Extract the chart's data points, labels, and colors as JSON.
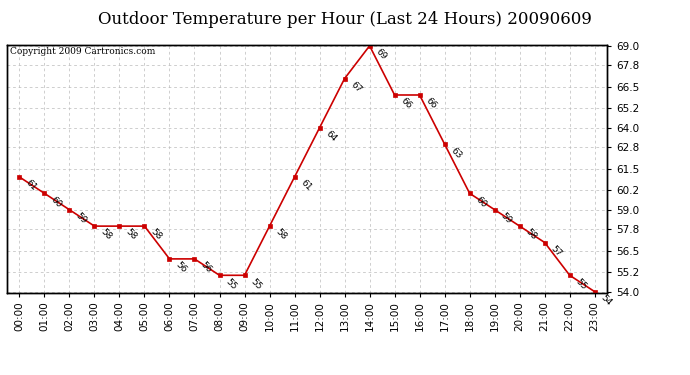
{
  "title": "Outdoor Temperature per Hour (Last 24 Hours) 20090609",
  "copyright": "Copyright 2009 Cartronics.com",
  "hours": [
    "00:00",
    "01:00",
    "02:00",
    "03:00",
    "04:00",
    "05:00",
    "06:00",
    "07:00",
    "08:00",
    "09:00",
    "10:00",
    "11:00",
    "12:00",
    "13:00",
    "14:00",
    "15:00",
    "16:00",
    "17:00",
    "18:00",
    "19:00",
    "20:00",
    "21:00",
    "22:00",
    "23:00"
  ],
  "temps": [
    61,
    60,
    59,
    58,
    58,
    58,
    56,
    56,
    55,
    55,
    58,
    61,
    64,
    67,
    69,
    66,
    66,
    63,
    60,
    59,
    58,
    57,
    55,
    54
  ],
  "line_color": "#cc0000",
  "marker_color": "#cc0000",
  "bg_color": "#ffffff",
  "grid_color": "#bbbbbb",
  "ylim_min": 54.0,
  "ylim_max": 69.0,
  "yticks": [
    54.0,
    55.2,
    56.5,
    57.8,
    59.0,
    60.2,
    61.5,
    62.8,
    64.0,
    65.2,
    66.5,
    67.8,
    69.0
  ],
  "title_fontsize": 12,
  "copyright_fontsize": 6.5,
  "label_fontsize": 6.5,
  "tick_fontsize": 7.5
}
